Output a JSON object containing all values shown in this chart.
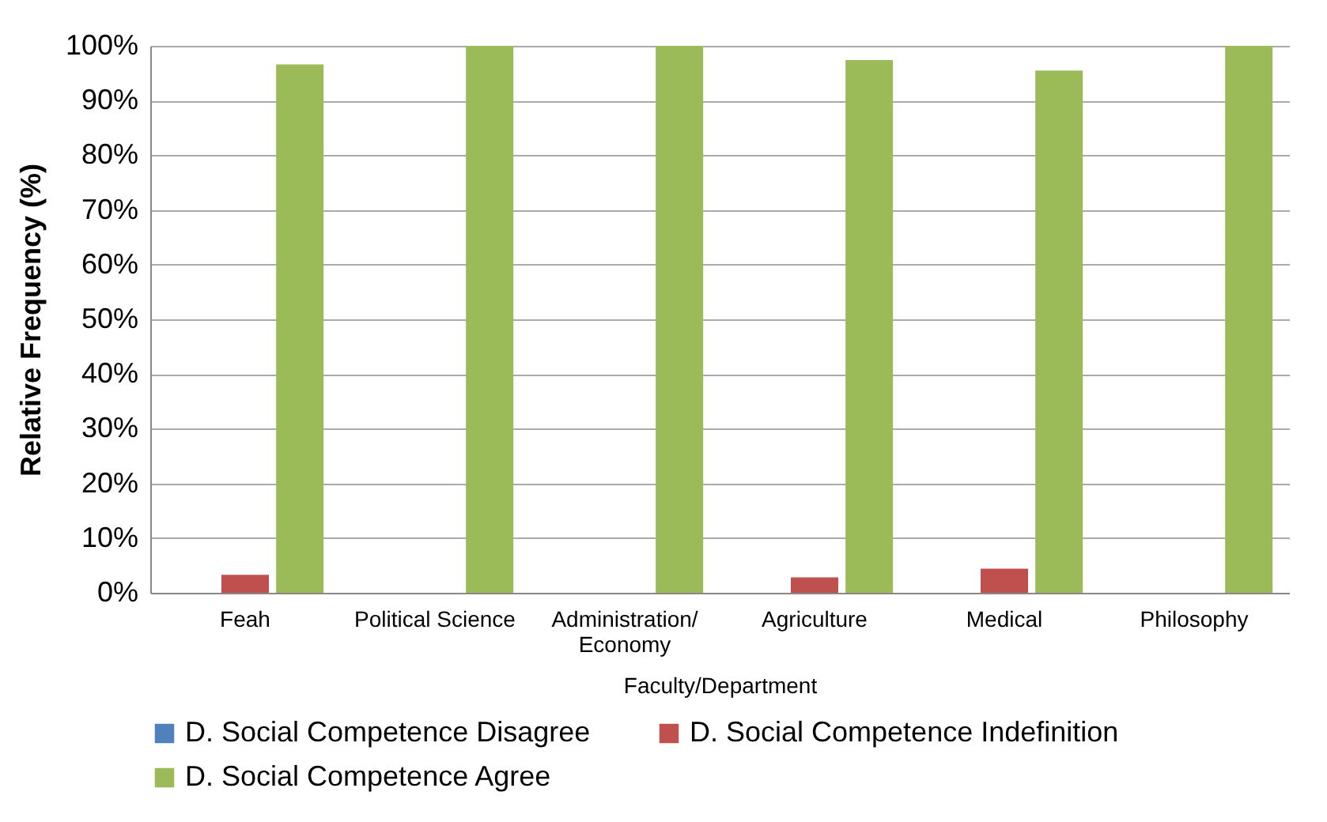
{
  "chart_data": {
    "type": "bar",
    "xlabel": "Faculty/Department",
    "ylabel": "Relative Frequency (%)",
    "categories": [
      "Feah",
      "Political Science",
      "Administration/ Economy",
      "Agriculture",
      "Medical",
      "Philosophy"
    ],
    "series": [
      {
        "name": "D. Social Competence Disagree",
        "color": "#4f81bd",
        "values": [
          0,
          0,
          0,
          0,
          0,
          0
        ]
      },
      {
        "name": "D. Social Competence Indefinition",
        "color": "#c0504d",
        "values": [
          3.3,
          0,
          0,
          2.8,
          4.4,
          0
        ]
      },
      {
        "name": "D. Social Competence Agree",
        "color": "#9bbb59",
        "values": [
          96.6,
          100,
          100,
          97.4,
          95.5,
          100
        ]
      }
    ],
    "ylim": [
      0,
      100
    ],
    "yticks": [
      {
        "value": 0,
        "label": "0%"
      },
      {
        "value": 10,
        "label": "10%"
      },
      {
        "value": 20,
        "label": "20%"
      },
      {
        "value": 30,
        "label": "30%"
      },
      {
        "value": 40,
        "label": "40%"
      },
      {
        "value": 50,
        "label": "50%"
      },
      {
        "value": 60,
        "label": "60%"
      },
      {
        "value": 70,
        "label": "70%"
      },
      {
        "value": 80,
        "label": "80%"
      },
      {
        "value": 90,
        "label": "90%"
      },
      {
        "value": 100,
        "label": "100%"
      }
    ],
    "grid": "y",
    "legend": "bottom"
  }
}
